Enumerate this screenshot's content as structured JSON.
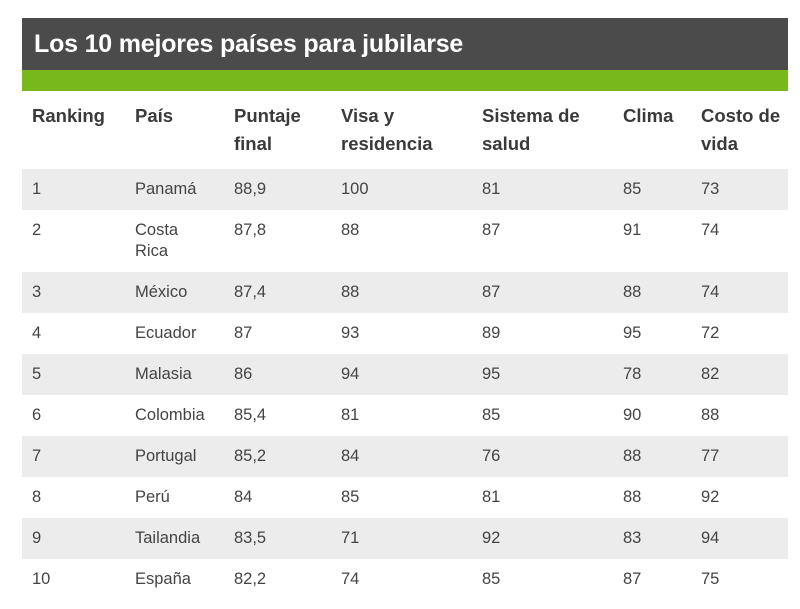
{
  "title": "Los 10 mejores países para jubilarse",
  "colors": {
    "title_bg": "#4b4b4b",
    "accent": "#78b81a",
    "row_alt": "#ececec"
  },
  "table": {
    "headers": [
      "Ranking",
      "País",
      "Puntaje final",
      "Visa y residencia",
      "Sistema de salud",
      "Clima",
      "Costo de vida"
    ],
    "rows": [
      [
        "1",
        "Panamá",
        "88,9",
        "100",
        "81",
        "85",
        "73"
      ],
      [
        "2",
        "Costa Rica",
        "87,8",
        "88",
        "87",
        "91",
        "74"
      ],
      [
        "3",
        "México",
        "87,4",
        "88",
        "87",
        "88",
        "74"
      ],
      [
        "4",
        "Ecuador",
        "87",
        "93",
        "89",
        "95",
        "72"
      ],
      [
        "5",
        "Malasia",
        "86",
        "94",
        "95",
        "78",
        "82"
      ],
      [
        "6",
        "Colombia",
        "85,4",
        "81",
        "85",
        "90",
        "88"
      ],
      [
        "7",
        "Portugal",
        "85,2",
        "84",
        "76",
        "88",
        "77"
      ],
      [
        "8",
        "Perú",
        "84",
        "85",
        "81",
        "88",
        "92"
      ],
      [
        "9",
        "Tailandia",
        "83,5",
        "71",
        "92",
        "83",
        "94"
      ],
      [
        "10",
        "España",
        "82,2",
        "74",
        "85",
        "87",
        "75"
      ]
    ]
  }
}
